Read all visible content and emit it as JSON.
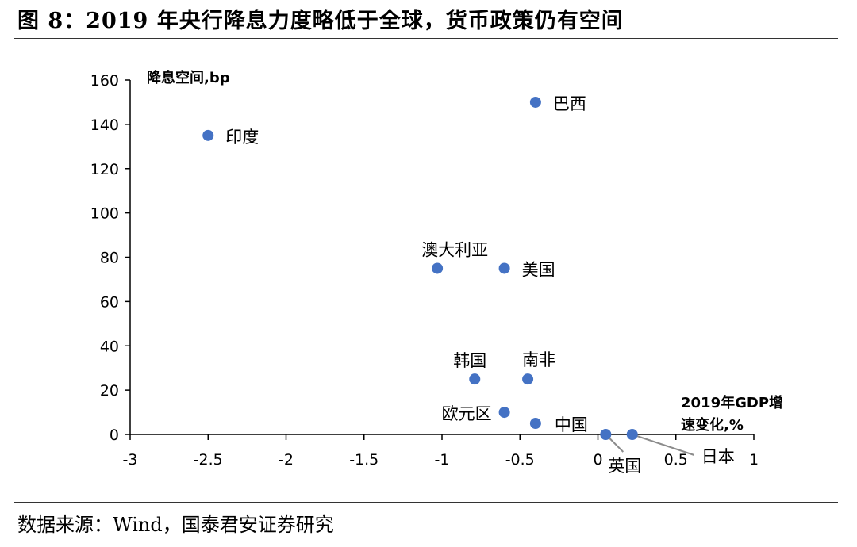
{
  "title": "图 8：2019 年央行降息力度略低于全球，货币政策仍有空间",
  "source": "数据来源：Wind，国泰君安证券研究",
  "chart_data": {
    "type": "scatter",
    "xlabel": [
      "2019年GDP增",
      "速变化,%"
    ],
    "ylabel": "降息空间,bp",
    "xlim": [
      -3,
      1
    ],
    "ylim": [
      0,
      160
    ],
    "xticks": [
      "-3",
      "-2.5",
      "-2",
      "-1.5",
      "-1",
      "-0.5",
      "0",
      "0.5",
      "1"
    ],
    "xtick_values": [
      -3,
      -2.5,
      -2,
      -1.5,
      -1,
      -0.5,
      0,
      0.5,
      1
    ],
    "yticks": [
      "0",
      "20",
      "40",
      "60",
      "80",
      "100",
      "120",
      "140",
      "160"
    ],
    "ytick_values": [
      0,
      20,
      40,
      60,
      80,
      100,
      120,
      140,
      160
    ],
    "grid": false,
    "color": "#4472C4",
    "points": [
      {
        "label": "印度",
        "x": -2.5,
        "y": 135
      },
      {
        "label": "巴西",
        "x": -0.4,
        "y": 150
      },
      {
        "label": "澳大利亚",
        "x": -1.03,
        "y": 75
      },
      {
        "label": "美国",
        "x": -0.6,
        "y": 75
      },
      {
        "label": "韩国",
        "x": -0.79,
        "y": 25
      },
      {
        "label": "南非",
        "x": -0.45,
        "y": 25
      },
      {
        "label": "欧元区",
        "x": -0.6,
        "y": 10
      },
      {
        "label": "中国",
        "x": -0.4,
        "y": 5
      },
      {
        "label": "英国",
        "x": 0.05,
        "y": 0
      },
      {
        "label": "日本",
        "x": 0.22,
        "y": 0
      }
    ]
  }
}
